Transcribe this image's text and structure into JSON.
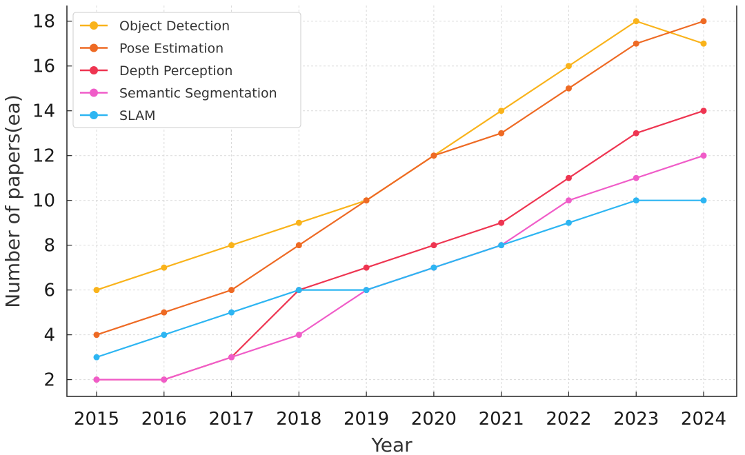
{
  "chart_data": {
    "type": "line",
    "title": "",
    "xlabel": "Year",
    "ylabel": "Number of papers(ea)",
    "categories": [
      "2015",
      "2016",
      "2017",
      "2018",
      "2019",
      "2020",
      "2021",
      "2022",
      "2023",
      "2024"
    ],
    "yticks": [
      "2",
      "4",
      "6",
      "8",
      "10",
      "12",
      "14",
      "16",
      "18"
    ],
    "ylim": [
      1.25,
      18.7
    ],
    "grid": true,
    "legend_position": "top-left",
    "series": [
      {
        "name": "Object Detection",
        "color": "#F9B31B",
        "values": [
          6,
          7,
          8,
          9,
          10,
          12,
          14,
          16,
          18,
          17
        ]
      },
      {
        "name": "Pose Estimation",
        "color": "#EE6A24",
        "values": [
          4,
          5,
          6,
          8,
          10,
          12,
          13,
          15,
          17,
          18
        ]
      },
      {
        "name": "Depth Perception",
        "color": "#EE3551",
        "values": [
          2,
          2,
          3,
          6,
          7,
          8,
          9,
          11,
          13,
          14
        ]
      },
      {
        "name": "Semantic Segmentation",
        "color": "#F05CC8",
        "values": [
          2,
          2,
          3,
          4,
          6,
          7,
          8,
          10,
          11,
          12
        ]
      },
      {
        "name": "SLAM",
        "color": "#2DB5F2",
        "values": [
          3,
          4,
          5,
          6,
          6,
          7,
          8,
          9,
          10,
          10
        ]
      }
    ]
  }
}
